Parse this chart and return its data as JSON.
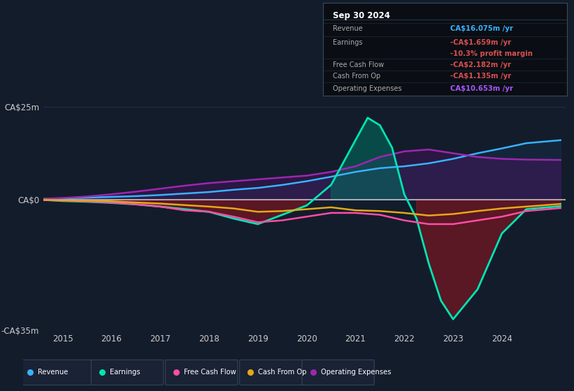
{
  "bg_color": "#131c2b",
  "chart_bg": "#131c2b",
  "ylim": [
    -35,
    30
  ],
  "ytick_positions": [
    -35,
    0,
    25
  ],
  "ytick_labels": [
    "-CA$35m",
    "CA$0",
    "CA$25m"
  ],
  "xlim_start": 2014.6,
  "xlim_end": 2025.3,
  "xticks": [
    2015,
    2016,
    2017,
    2018,
    2019,
    2020,
    2021,
    2022,
    2023,
    2024
  ],
  "grid_color": "#253045",
  "zero_line_color": "#cccccc",
  "series": {
    "revenue": {
      "color": "#38b2ff",
      "label": "Revenue",
      "x": [
        2014.6,
        2015.0,
        2015.5,
        2016.0,
        2016.5,
        2017.0,
        2017.5,
        2018.0,
        2018.5,
        2019.0,
        2019.5,
        2020.0,
        2020.5,
        2021.0,
        2021.5,
        2022.0,
        2022.5,
        2023.0,
        2023.5,
        2024.0,
        2024.5,
        2025.2
      ],
      "y": [
        0.3,
        0.4,
        0.6,
        0.8,
        1.0,
        1.3,
        1.7,
        2.1,
        2.7,
        3.2,
        4.0,
        5.0,
        6.2,
        7.5,
        8.5,
        9.0,
        9.8,
        11.0,
        12.5,
        13.8,
        15.2,
        16.0
      ]
    },
    "earnings": {
      "color": "#00e5b0",
      "label": "Earnings",
      "x": [
        2014.6,
        2015.0,
        2015.5,
        2016.0,
        2016.5,
        2017.0,
        2017.5,
        2018.0,
        2018.5,
        2019.0,
        2019.5,
        2020.0,
        2020.5,
        2021.0,
        2021.25,
        2021.5,
        2021.75,
        2022.0,
        2022.25,
        2022.5,
        2022.75,
        2023.0,
        2023.5,
        2024.0,
        2024.5,
        2025.2
      ],
      "y": [
        0.0,
        -0.3,
        -0.5,
        -0.8,
        -1.2,
        -1.8,
        -2.5,
        -3.2,
        -5.0,
        -6.5,
        -4.0,
        -1.5,
        4.0,
        16.0,
        22.0,
        20.0,
        14.0,
        1.5,
        -5.0,
        -17.0,
        -27.0,
        -32.0,
        -24.0,
        -9.0,
        -2.5,
        -1.7
      ]
    },
    "free_cash_flow": {
      "color": "#ff4da6",
      "label": "Free Cash Flow",
      "x": [
        2014.6,
        2015.0,
        2015.5,
        2016.0,
        2016.5,
        2017.0,
        2017.5,
        2018.0,
        2018.5,
        2019.0,
        2019.5,
        2020.0,
        2020.5,
        2021.0,
        2021.5,
        2022.0,
        2022.5,
        2023.0,
        2023.5,
        2024.0,
        2024.5,
        2025.2
      ],
      "y": [
        0.0,
        -0.2,
        -0.4,
        -0.7,
        -1.2,
        -1.8,
        -2.8,
        -3.2,
        -4.5,
        -6.0,
        -5.5,
        -4.5,
        -3.5,
        -3.5,
        -4.0,
        -5.5,
        -6.5,
        -6.5,
        -5.5,
        -4.5,
        -3.0,
        -2.2
      ]
    },
    "cash_from_op": {
      "color": "#e6a817",
      "label": "Cash From Op",
      "x": [
        2014.6,
        2015.0,
        2015.5,
        2016.0,
        2016.5,
        2017.0,
        2017.5,
        2018.0,
        2018.5,
        2019.0,
        2019.5,
        2020.0,
        2020.5,
        2021.0,
        2021.5,
        2022.0,
        2022.5,
        2023.0,
        2023.5,
        2024.0,
        2024.5,
        2025.2
      ],
      "y": [
        0.0,
        -0.1,
        -0.2,
        -0.4,
        -0.7,
        -1.0,
        -1.4,
        -1.8,
        -2.3,
        -3.2,
        -3.0,
        -2.5,
        -2.0,
        -2.8,
        -3.0,
        -3.5,
        -4.2,
        -3.8,
        -3.0,
        -2.3,
        -1.8,
        -1.1
      ]
    },
    "operating_expenses": {
      "color": "#9c27b0",
      "label": "Operating Expenses",
      "x": [
        2014.6,
        2015.0,
        2015.5,
        2016.0,
        2016.5,
        2017.0,
        2017.5,
        2018.0,
        2018.5,
        2019.0,
        2019.5,
        2020.0,
        2020.5,
        2021.0,
        2021.5,
        2022.0,
        2022.5,
        2023.0,
        2023.5,
        2024.0,
        2024.5,
        2025.2
      ],
      "y": [
        0.3,
        0.5,
        0.9,
        1.5,
        2.2,
        3.0,
        3.8,
        4.5,
        5.0,
        5.5,
        6.0,
        6.5,
        7.5,
        9.0,
        11.5,
        13.0,
        13.5,
        12.5,
        11.5,
        11.0,
        10.8,
        10.7
      ]
    }
  },
  "info_box": {
    "title": "Sep 30 2024",
    "rows": [
      {
        "label": "Revenue",
        "value": "CA$16.075m /yr",
        "label_color": "#aaaaaa",
        "value_color": "#38b2ff"
      },
      {
        "label": "Earnings",
        "value": "-CA$1.659m /yr",
        "label_color": "#aaaaaa",
        "value_color": "#d94f4f"
      },
      {
        "label": "",
        "value": "-10.3% profit margin",
        "label_color": "#aaaaaa",
        "value_color": "#d94f4f"
      },
      {
        "label": "Free Cash Flow",
        "value": "-CA$2.182m /yr",
        "label_color": "#aaaaaa",
        "value_color": "#d94f4f"
      },
      {
        "label": "Cash From Op",
        "value": "-CA$1.135m /yr",
        "label_color": "#aaaaaa",
        "value_color": "#d94f4f"
      },
      {
        "label": "Operating Expenses",
        "value": "CA$10.653m /yr",
        "label_color": "#aaaaaa",
        "value_color": "#aa55ff"
      }
    ]
  },
  "legend": [
    {
      "label": "Revenue",
      "color": "#38b2ff"
    },
    {
      "label": "Earnings",
      "color": "#00e5b0"
    },
    {
      "label": "Free Cash Flow",
      "color": "#ff4da6"
    },
    {
      "label": "Cash From Op",
      "color": "#e6a817"
    },
    {
      "label": "Operating Expenses",
      "color": "#9c27b0"
    }
  ]
}
